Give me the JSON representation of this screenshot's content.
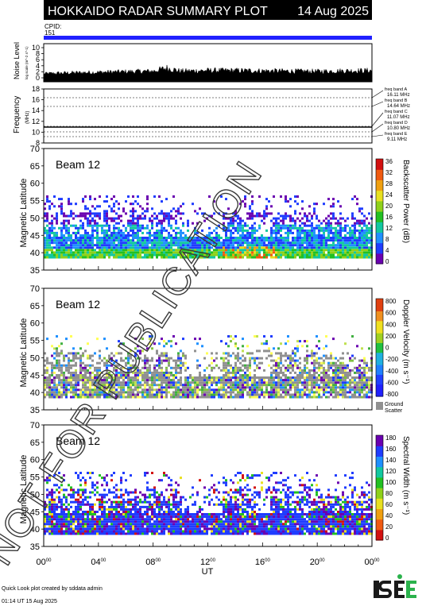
{
  "header": {
    "title": "HOKKAIDO RADAR SUMMARY PLOT",
    "date": "14 Aug 2025",
    "cpid_label": "CPID:",
    "cpid_value": "151"
  },
  "noise": {
    "ylabel": "Noise Level",
    "ylabel_unit": "log scale (m^-2 s^-1)",
    "ticks": [
      "10",
      "8",
      "6",
      "4",
      "2",
      "0"
    ]
  },
  "frequency": {
    "ylabel": "Frequency",
    "unit": "(MHz)",
    "ticks": [
      "18",
      "16",
      "14",
      "12",
      "10",
      "8"
    ],
    "bands": [
      {
        "label": "freq band A",
        "value": "16.11 MHz"
      },
      {
        "label": "freq band B",
        "value": "14.64 MHz"
      },
      {
        "label": "freq band C",
        "value": "11.07 MHz"
      },
      {
        "label": "freq band D",
        "value": "10.80 MHz"
      },
      {
        "label": "freq band E",
        "value": "9.11 MHz"
      }
    ]
  },
  "panels": [
    {
      "beam": "Beam 12",
      "ylabel": "Magnetic Latitude",
      "yticks": [
        "70",
        "65",
        "60",
        "55",
        "50",
        "45",
        "40",
        "35"
      ],
      "cbar_label": "Backscatter Power (dB)",
      "cbar_ticks": [
        "36",
        "32",
        "28",
        "24",
        "20",
        "16",
        "12",
        "8",
        "4",
        "0"
      ]
    },
    {
      "beam": "Beam 12",
      "ylabel": "Magnetic Latitude",
      "yticks": [
        "70",
        "65",
        "60",
        "55",
        "50",
        "45",
        "40",
        "35"
      ],
      "cbar_label": "Doppler Velocity (m s⁻¹)",
      "cbar_ticks": [
        "800",
        "600",
        "400",
        "200",
        "0",
        "-200",
        "-400",
        "-600",
        "-800"
      ],
      "ground_label_1": "Ground",
      "ground_label_2": "Scatter"
    },
    {
      "beam": "Beam 12",
      "ylabel": "Magnetic Latitude",
      "yticks": [
        "70",
        "65",
        "60",
        "55",
        "50",
        "45",
        "40",
        "35"
      ],
      "cbar_label": "Spectral Width (m s⁻¹)",
      "cbar_ticks": [
        "180",
        "160",
        "140",
        "120",
        "100",
        "80",
        "60",
        "40",
        "20",
        "0"
      ]
    }
  ],
  "xaxis": {
    "ticks": [
      "00",
      "04",
      "08",
      "12",
      "16",
      "20",
      "00"
    ],
    "tick_sup": "00",
    "label": "UT"
  },
  "footer": {
    "line1": "Quick Look plot created by sddata admin",
    "line2": "01:14 UT 15 Aug 2025",
    "logo": "ISEE"
  },
  "watermark": "NOT FOR PUBLICATION",
  "colors": {
    "title_bar": "#000000",
    "cpid_bar": "#2020ff",
    "ground_scatter": "#909090"
  },
  "chart_data": [
    {
      "type": "area",
      "title": "Noise Level",
      "x_range_ut_hours": [
        0,
        24
      ],
      "ylim": [
        0,
        10
      ],
      "x": [
        0,
        2,
        4,
        6,
        8,
        9,
        10,
        12,
        14,
        16,
        18,
        20,
        22,
        24
      ],
      "values": [
        1.5,
        1.8,
        2.0,
        2.2,
        2.4,
        3.5,
        2.4,
        2.6,
        2.6,
        2.5,
        2.4,
        2.3,
        2.5,
        2.6
      ]
    },
    {
      "type": "scatter",
      "title": "Frequency",
      "x_range_ut_hours": [
        0,
        24
      ],
      "ylim": [
        8,
        18
      ],
      "series": [
        {
          "name": "freq",
          "values": [
            10.8,
            10.8,
            10.8,
            10.8,
            10.8,
            10.8,
            10.8
          ]
        }
      ],
      "x": [
        0,
        4,
        8,
        12,
        16,
        20,
        24
      ]
    },
    {
      "type": "heatmap",
      "title": "Beam 12",
      "xlabel": "UT",
      "ylabel": "Magnetic Latitude",
      "xlim": [
        0,
        24
      ],
      "ylim": [
        35,
        70
      ],
      "scatter_lat_range": [
        38.5,
        56
      ],
      "colorbar": {
        "label": "Backscatter Power (dB)",
        "range": [
          0,
          36
        ]
      }
    },
    {
      "type": "heatmap",
      "title": "Beam 12",
      "xlabel": "UT",
      "ylabel": "Magnetic Latitude",
      "xlim": [
        0,
        24
      ],
      "ylim": [
        35,
        70
      ],
      "scatter_lat_range": [
        38.5,
        56
      ],
      "colorbar": {
        "label": "Doppler Velocity (m s⁻¹)",
        "range": [
          -800,
          800
        ]
      }
    },
    {
      "type": "heatmap",
      "title": "Beam 12",
      "xlabel": "UT",
      "ylabel": "Magnetic Latitude",
      "xlim": [
        0,
        24
      ],
      "ylim": [
        35,
        70
      ],
      "scatter_lat_range": [
        38.5,
        56
      ],
      "colorbar": {
        "label": "Spectral Width (m s⁻¹)",
        "range": [
          0,
          180
        ]
      }
    }
  ]
}
